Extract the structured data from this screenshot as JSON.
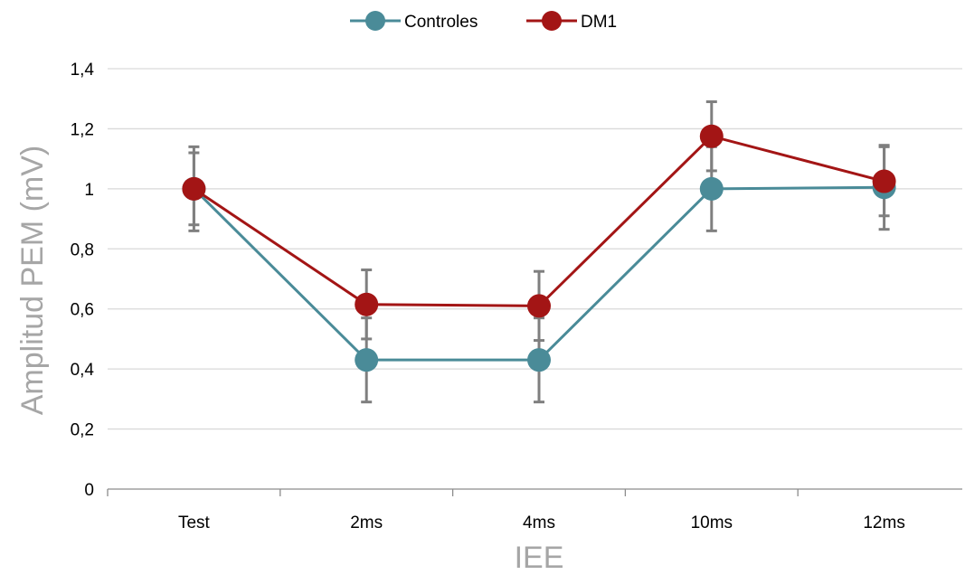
{
  "chart_data": {
    "type": "line",
    "categories": [
      "Test",
      "2ms",
      "4ms",
      "10ms",
      "12ms"
    ],
    "xlabel": "IEE",
    "ylabel": "Amplitud PEM (mV)",
    "ylim": [
      0,
      1.4
    ],
    "yticks": [
      0,
      0.2,
      0.4,
      0.6,
      0.8,
      1,
      1.2,
      1.4
    ],
    "ytick_labels": [
      "0",
      "0,2",
      "0,4",
      "0,6",
      "0,8",
      "1",
      "1,2",
      "1,4"
    ],
    "grid": true,
    "legend_position": "top-center",
    "error_bar_color": "#7f7f7f",
    "series": [
      {
        "name": "Controles",
        "color": "#4a8b98",
        "values": [
          1.0,
          0.43,
          0.43,
          1.0,
          1.005
        ],
        "errors": [
          0.14,
          0.14,
          0.14,
          0.14,
          0.14
        ]
      },
      {
        "name": "DM1",
        "color": "#a31515",
        "values": [
          1.0,
          0.615,
          0.61,
          1.175,
          1.025
        ],
        "errors": [
          0.12,
          0.115,
          0.115,
          0.115,
          0.115
        ]
      }
    ]
  }
}
